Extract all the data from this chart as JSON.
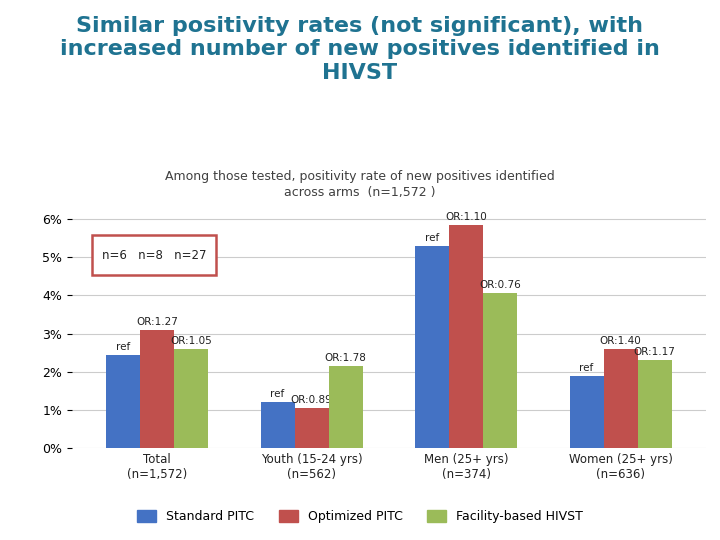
{
  "title_lines": [
    "Similar positivity rates (not significant), with",
    "increased number of new positives identified in",
    "HIVST"
  ],
  "subtitle_line1": "Among those tested, positivity rate of new positives identified",
  "subtitle_line2": "across arms  (n=1,572 )",
  "categories": [
    "Total\n(n=1,572)",
    "Youth (15-24 yrs)\n(n=562)",
    "Men (25+ yrs)\n(n=374)",
    "Women (25+ yrs)\n(n=636)"
  ],
  "series": {
    "Standard PITC": [
      2.45,
      1.2,
      5.3,
      1.9
    ],
    "Optimized PITC": [
      3.1,
      1.05,
      5.85,
      2.6
    ],
    "Facility-based HIVST": [
      2.6,
      2.15,
      4.05,
      2.3
    ]
  },
  "colors": {
    "Standard PITC": "#4472C4",
    "Optimized PITC": "#C0504D",
    "Facility-based HIVST": "#9BBB59"
  },
  "or_labels": {
    "Total": [
      "ref",
      "OR:1.27",
      "OR:1.05"
    ],
    "Youth": [
      "ref",
      "OR:0.89",
      "OR:1.78"
    ],
    "Men": [
      "ref",
      "OR:1.10",
      "OR:0.76"
    ],
    "Women": [
      "ref",
      "OR:1.40",
      "OR:1.17"
    ]
  },
  "box_text": "n=6   n=8   n=27",
  "ylim": [
    0,
    6.5
  ],
  "yticks": [
    0,
    1,
    2,
    3,
    4,
    5,
    6
  ],
  "title_color": "#1F7391",
  "subtitle_color": "#404040",
  "bar_width": 0.22
}
